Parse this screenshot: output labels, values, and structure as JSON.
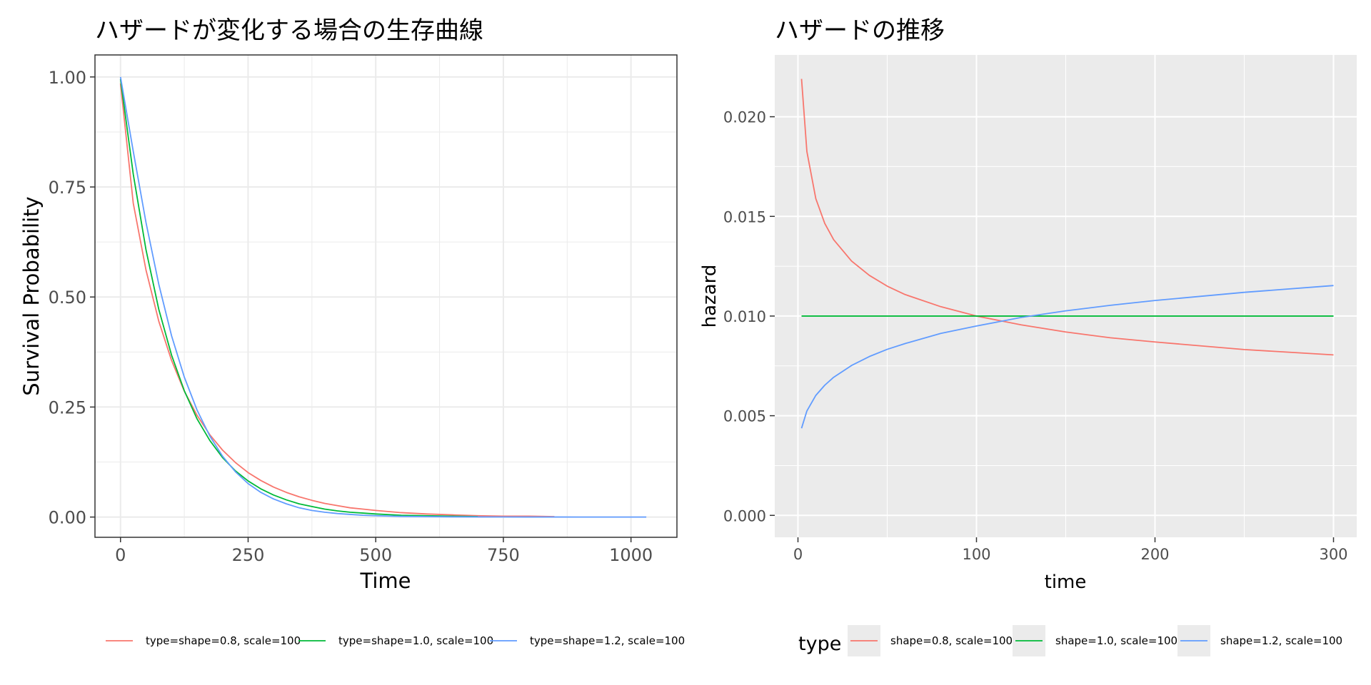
{
  "chart_data": [
    {
      "type": "line",
      "title": "ハザードが変化する場合の生存曲線",
      "xlabel": "Time",
      "ylabel": "Survival Probability",
      "xlim": [
        -50,
        1090
      ],
      "ylim": [
        -0.046,
        1.05
      ],
      "x_ticks": [
        0,
        250,
        500,
        750,
        1000
      ],
      "x_tick_labels": [
        "0",
        "250",
        "500",
        "750",
        "1000"
      ],
      "y_ticks": [
        0,
        0.25,
        0.5,
        0.75,
        1.0
      ],
      "y_tick_labels": [
        "0.00",
        "0.25",
        "0.50",
        "0.75",
        "1.00"
      ],
      "grid": true,
      "legend_position": "bottom",
      "x": [
        0,
        25,
        50,
        75,
        100,
        125,
        150,
        175,
        200,
        225,
        250,
        275,
        300,
        325,
        350,
        375,
        400,
        425,
        450,
        475,
        500,
        550,
        600,
        650,
        700,
        750,
        800,
        850,
        900,
        950,
        1000,
        1030
      ],
      "series": [
        {
          "name": "type=shape=0.8, scale=100",
          "color": "#F8766D",
          "values": [
            0.985,
            0.713,
            0.561,
            0.445,
            0.356,
            0.286,
            0.231,
            0.187,
            0.152,
            0.124,
            0.101,
            0.083,
            0.068,
            0.056,
            0.046,
            0.038,
            0.031,
            0.026,
            0.021,
            0.018,
            0.015,
            0.01,
            0.007,
            0.005,
            0.003,
            0.002,
            0.002,
            0.001,
            null,
            null,
            null,
            null
          ]
        },
        {
          "name": "type=shape=1.0, scale=100",
          "color": "#00BA38",
          "values": [
            0.995,
            0.779,
            0.607,
            0.472,
            0.368,
            0.287,
            0.223,
            0.174,
            0.135,
            0.105,
            0.082,
            0.064,
            0.05,
            0.039,
            0.03,
            0.024,
            0.018,
            0.014,
            0.011,
            0.009,
            0.007,
            0.004,
            0.003,
            0.002,
            0.001,
            null,
            null,
            null,
            null,
            null,
            null,
            null
          ]
        },
        {
          "name": "type=shape=1.2, scale=100",
          "color": "#619CFF",
          "values": [
            1.0,
            0.831,
            0.669,
            0.529,
            0.412,
            0.318,
            0.243,
            0.184,
            0.138,
            0.103,
            0.076,
            0.056,
            0.041,
            0.03,
            0.021,
            0.015,
            0.011,
            0.008,
            0.006,
            0.004,
            0.003,
            0.0015,
            0.001,
            0.0005,
            0.0003,
            0.0002,
            0.0001,
            0.0001,
            0.0,
            0.0,
            0.0,
            0.0
          ]
        }
      ]
    },
    {
      "type": "line",
      "title": "ハザードの推移",
      "xlabel": "time",
      "ylabel": "hazard",
      "xlim": [
        -13,
        313
      ],
      "ylim": [
        -0.0011,
        0.0231
      ],
      "x_ticks": [
        0,
        100,
        200,
        300
      ],
      "x_tick_labels": [
        "0",
        "100",
        "200",
        "300"
      ],
      "y_ticks": [
        0.0,
        0.005,
        0.01,
        0.015,
        0.02
      ],
      "y_tick_labels": [
        "0.000",
        "0.005",
        "0.010",
        "0.015",
        "0.020"
      ],
      "grid": true,
      "legend_position": "bottom",
      "legend_title": "type",
      "x": [
        2,
        5,
        10,
        15,
        20,
        30,
        40,
        50,
        60,
        80,
        100,
        125,
        150,
        175,
        200,
        250,
        300
      ],
      "series": [
        {
          "name": "shape=0.8, scale=100",
          "color": "#F8766D",
          "values": [
            0.0219,
            0.01825,
            0.01589,
            0.01465,
            0.01383,
            0.01276,
            0.01204,
            0.0115,
            0.01108,
            0.01047,
            0.01,
            0.00956,
            0.0092,
            0.00891,
            0.0087,
            0.00832,
            0.00805
          ]
        },
        {
          "name": "shape=1.0, scale=100",
          "color": "#00BA38",
          "values": [
            0.01,
            0.01,
            0.01,
            0.01,
            0.01,
            0.01,
            0.01,
            0.01,
            0.01,
            0.01,
            0.01,
            0.01,
            0.01,
            0.01,
            0.01,
            0.01,
            0.01
          ]
        },
        {
          "name": "shape=1.2, scale=100",
          "color": "#619CFF",
          "values": [
            0.00437,
            0.00524,
            0.00602,
            0.00653,
            0.00693,
            0.00752,
            0.00797,
            0.00833,
            0.00862,
            0.00913,
            0.0095,
            0.00993,
            0.01026,
            0.01054,
            0.01078,
            0.01119,
            0.01153
          ]
        }
      ]
    }
  ]
}
